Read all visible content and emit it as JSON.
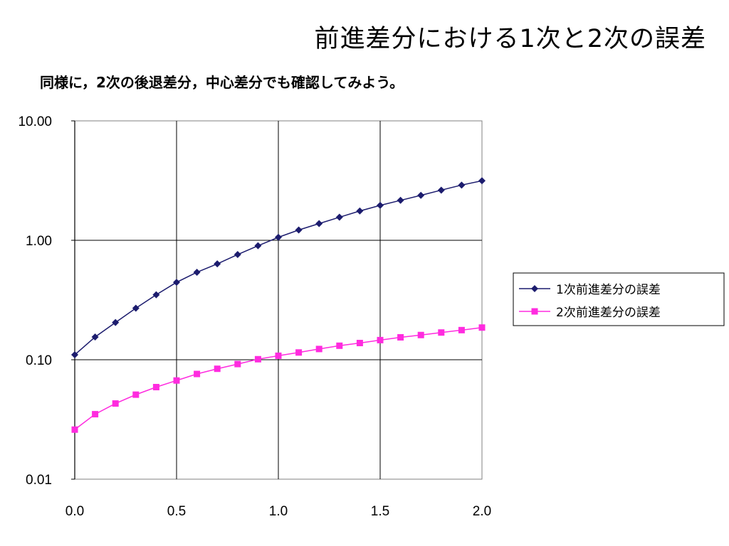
{
  "slide": {
    "title": "前進差分における1次と2次の誤差",
    "subtitle": "同様に，2次の後退差分，中心差分でも確認してみよう。"
  },
  "chart_data": {
    "type": "line",
    "yscale": "log",
    "ylim": [
      0.01,
      10
    ],
    "xlim": [
      0,
      2
    ],
    "xticks": [
      "0.0",
      "0.5",
      "1.0",
      "1.5",
      "2.0"
    ],
    "xtick_values": [
      0,
      0.5,
      1.0,
      1.5,
      2.0
    ],
    "yticks": [
      "0.01",
      "0.10",
      "1.00",
      "10.00"
    ],
    "ytick_values": [
      0.01,
      0.1,
      1,
      10
    ],
    "grid": true,
    "legend_position": "right",
    "x": [
      0.0,
      0.1,
      0.2,
      0.3,
      0.4,
      0.5,
      0.6,
      0.7,
      0.8,
      0.9,
      1.0,
      1.1,
      1.2,
      1.3,
      1.4,
      1.5,
      1.6,
      1.7,
      1.8,
      1.9,
      2.0
    ],
    "series": [
      {
        "name": "1次前進差分の誤差",
        "color": "#1c1c6e",
        "marker": "diamond",
        "values": [
          0.11,
          0.155,
          0.205,
          0.27,
          0.35,
          0.445,
          0.54,
          0.635,
          0.76,
          0.9,
          1.06,
          1.22,
          1.38,
          1.56,
          1.76,
          1.96,
          2.16,
          2.38,
          2.63,
          2.9,
          3.15
        ]
      },
      {
        "name": "2次前進差分の誤差",
        "color": "#ff2bdf",
        "marker": "square",
        "values": [
          0.026,
          0.035,
          0.043,
          0.051,
          0.059,
          0.067,
          0.076,
          0.084,
          0.092,
          0.101,
          0.108,
          0.115,
          0.123,
          0.131,
          0.138,
          0.146,
          0.154,
          0.161,
          0.169,
          0.177,
          0.186
        ]
      }
    ]
  }
}
